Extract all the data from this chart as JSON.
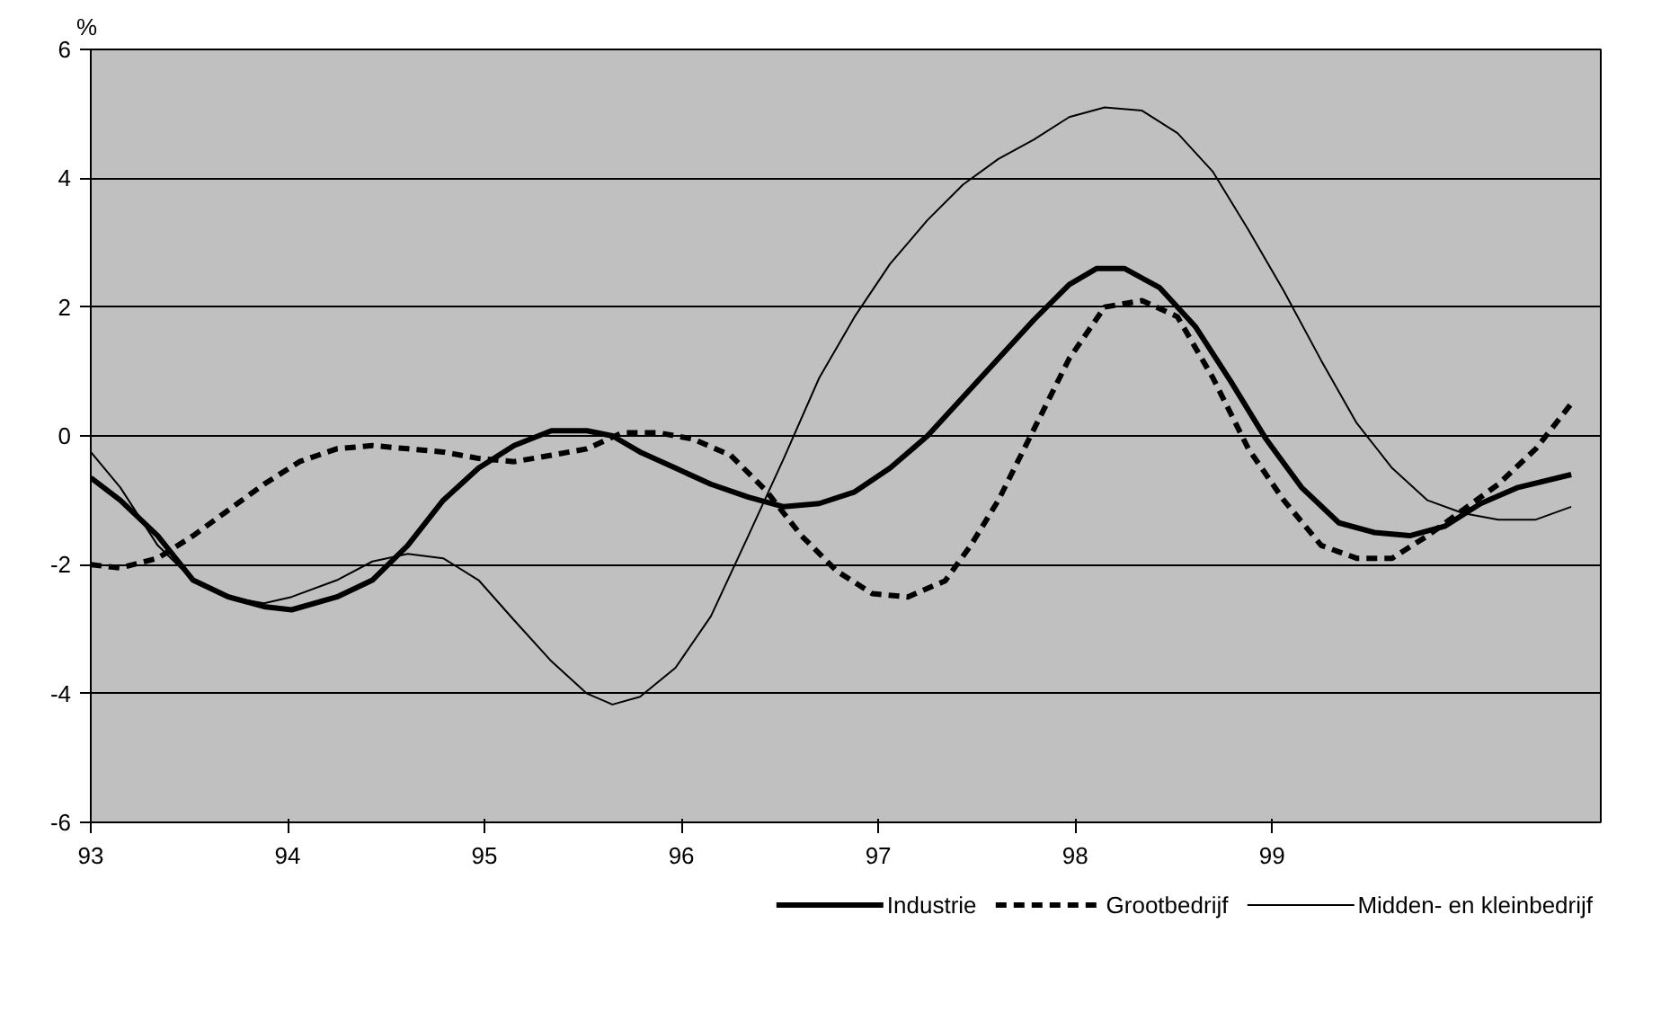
{
  "chart_data": {
    "type": "line",
    "ylabel": "%",
    "xlim": [
      93,
      100.67
    ],
    "ylim": [
      -6,
      6
    ],
    "xticks": [
      93,
      94,
      95,
      96,
      97,
      98,
      99
    ],
    "yticks": [
      -6,
      -4,
      -2,
      0,
      2,
      4,
      6
    ],
    "grid": "y",
    "legend": "bottom",
    "marker": "none",
    "series": [
      {
        "name": "Industrie",
        "color": "#000000",
        "line_style": "solid",
        "x": [
          93.0,
          93.15,
          93.34,
          93.52,
          93.7,
          93.88,
          94.02,
          94.25,
          94.43,
          94.61,
          94.79,
          94.97,
          95.15,
          95.34,
          95.52,
          95.65,
          95.79,
          95.97,
          96.15,
          96.34,
          96.52,
          96.7,
          96.88,
          97.06,
          97.25,
          97.43,
          97.61,
          97.79,
          97.97,
          98.11,
          98.25,
          98.43,
          98.61,
          98.79,
          98.97,
          99.15,
          99.34,
          99.52,
          99.7,
          99.88,
          100.06,
          100.25,
          100.52
        ],
        "values": [
          -0.65,
          -1.0,
          -1.55,
          -2.24,
          -2.5,
          -2.65,
          -2.7,
          -2.5,
          -2.24,
          -1.7,
          -1.0,
          -0.5,
          -0.15,
          0.08,
          0.08,
          0.0,
          -0.25,
          -0.5,
          -0.75,
          -0.95,
          -1.1,
          -1.05,
          -0.87,
          -0.5,
          0.0,
          0.6,
          1.2,
          1.8,
          2.35,
          2.6,
          2.6,
          2.3,
          1.7,
          0.85,
          -0.05,
          -0.8,
          -1.35,
          -1.5,
          -1.55,
          -1.4,
          -1.05,
          -0.8,
          -0.6
        ]
      },
      {
        "name": "Grootbedrijf",
        "color": "#000000",
        "line_style": "dashed",
        "x": [
          93.0,
          93.15,
          93.34,
          93.52,
          93.7,
          93.88,
          94.06,
          94.25,
          94.43,
          94.61,
          94.79,
          94.97,
          95.15,
          95.34,
          95.52,
          95.7,
          95.88,
          96.06,
          96.25,
          96.43,
          96.61,
          96.79,
          96.97,
          97.15,
          97.34,
          97.47,
          97.61,
          97.79,
          97.97,
          98.15,
          98.34,
          98.52,
          98.7,
          98.88,
          99.06,
          99.25,
          99.43,
          99.61,
          99.79,
          99.97,
          100.15,
          100.34,
          100.52
        ],
        "values": [
          -2.0,
          -2.05,
          -1.9,
          -1.55,
          -1.15,
          -0.75,
          -0.4,
          -0.2,
          -0.15,
          -0.2,
          -0.25,
          -0.35,
          -0.4,
          -0.3,
          -0.2,
          0.05,
          0.05,
          -0.05,
          -0.3,
          -0.85,
          -1.55,
          -2.1,
          -2.45,
          -2.5,
          -2.25,
          -1.7,
          -1.0,
          0.1,
          1.2,
          2.0,
          2.1,
          1.85,
          0.9,
          -0.2,
          -1.0,
          -1.7,
          -1.9,
          -1.9,
          -1.55,
          -1.15,
          -0.75,
          -0.2,
          0.5
        ]
      },
      {
        "name": "Midden- en kleinbedrijf",
        "color": "#000000",
        "line_style": "solid",
        "x": [
          93.0,
          93.15,
          93.34,
          93.52,
          93.7,
          93.88,
          94.02,
          94.25,
          94.43,
          94.61,
          94.79,
          94.97,
          95.15,
          95.34,
          95.52,
          95.65,
          95.79,
          95.97,
          96.15,
          96.34,
          96.52,
          96.7,
          96.88,
          97.06,
          97.25,
          97.43,
          97.61,
          97.79,
          97.97,
          98.15,
          98.34,
          98.52,
          98.7,
          98.88,
          99.06,
          99.25,
          99.43,
          99.61,
          99.79,
          99.97,
          100.15,
          100.34,
          100.52
        ],
        "values": [
          -0.25,
          -0.8,
          -1.7,
          -2.24,
          -2.5,
          -2.6,
          -2.5,
          -2.24,
          -1.95,
          -1.83,
          -1.9,
          -2.24,
          -2.86,
          -3.5,
          -4.0,
          -4.17,
          -4.05,
          -3.6,
          -2.8,
          -1.55,
          -0.35,
          0.9,
          1.85,
          2.67,
          3.35,
          3.9,
          4.3,
          4.6,
          4.95,
          5.1,
          5.05,
          4.7,
          4.1,
          3.2,
          2.25,
          1.17,
          0.2,
          -0.5,
          -1.0,
          -1.2,
          -1.3,
          -1.3,
          -1.1
        ]
      }
    ]
  }
}
